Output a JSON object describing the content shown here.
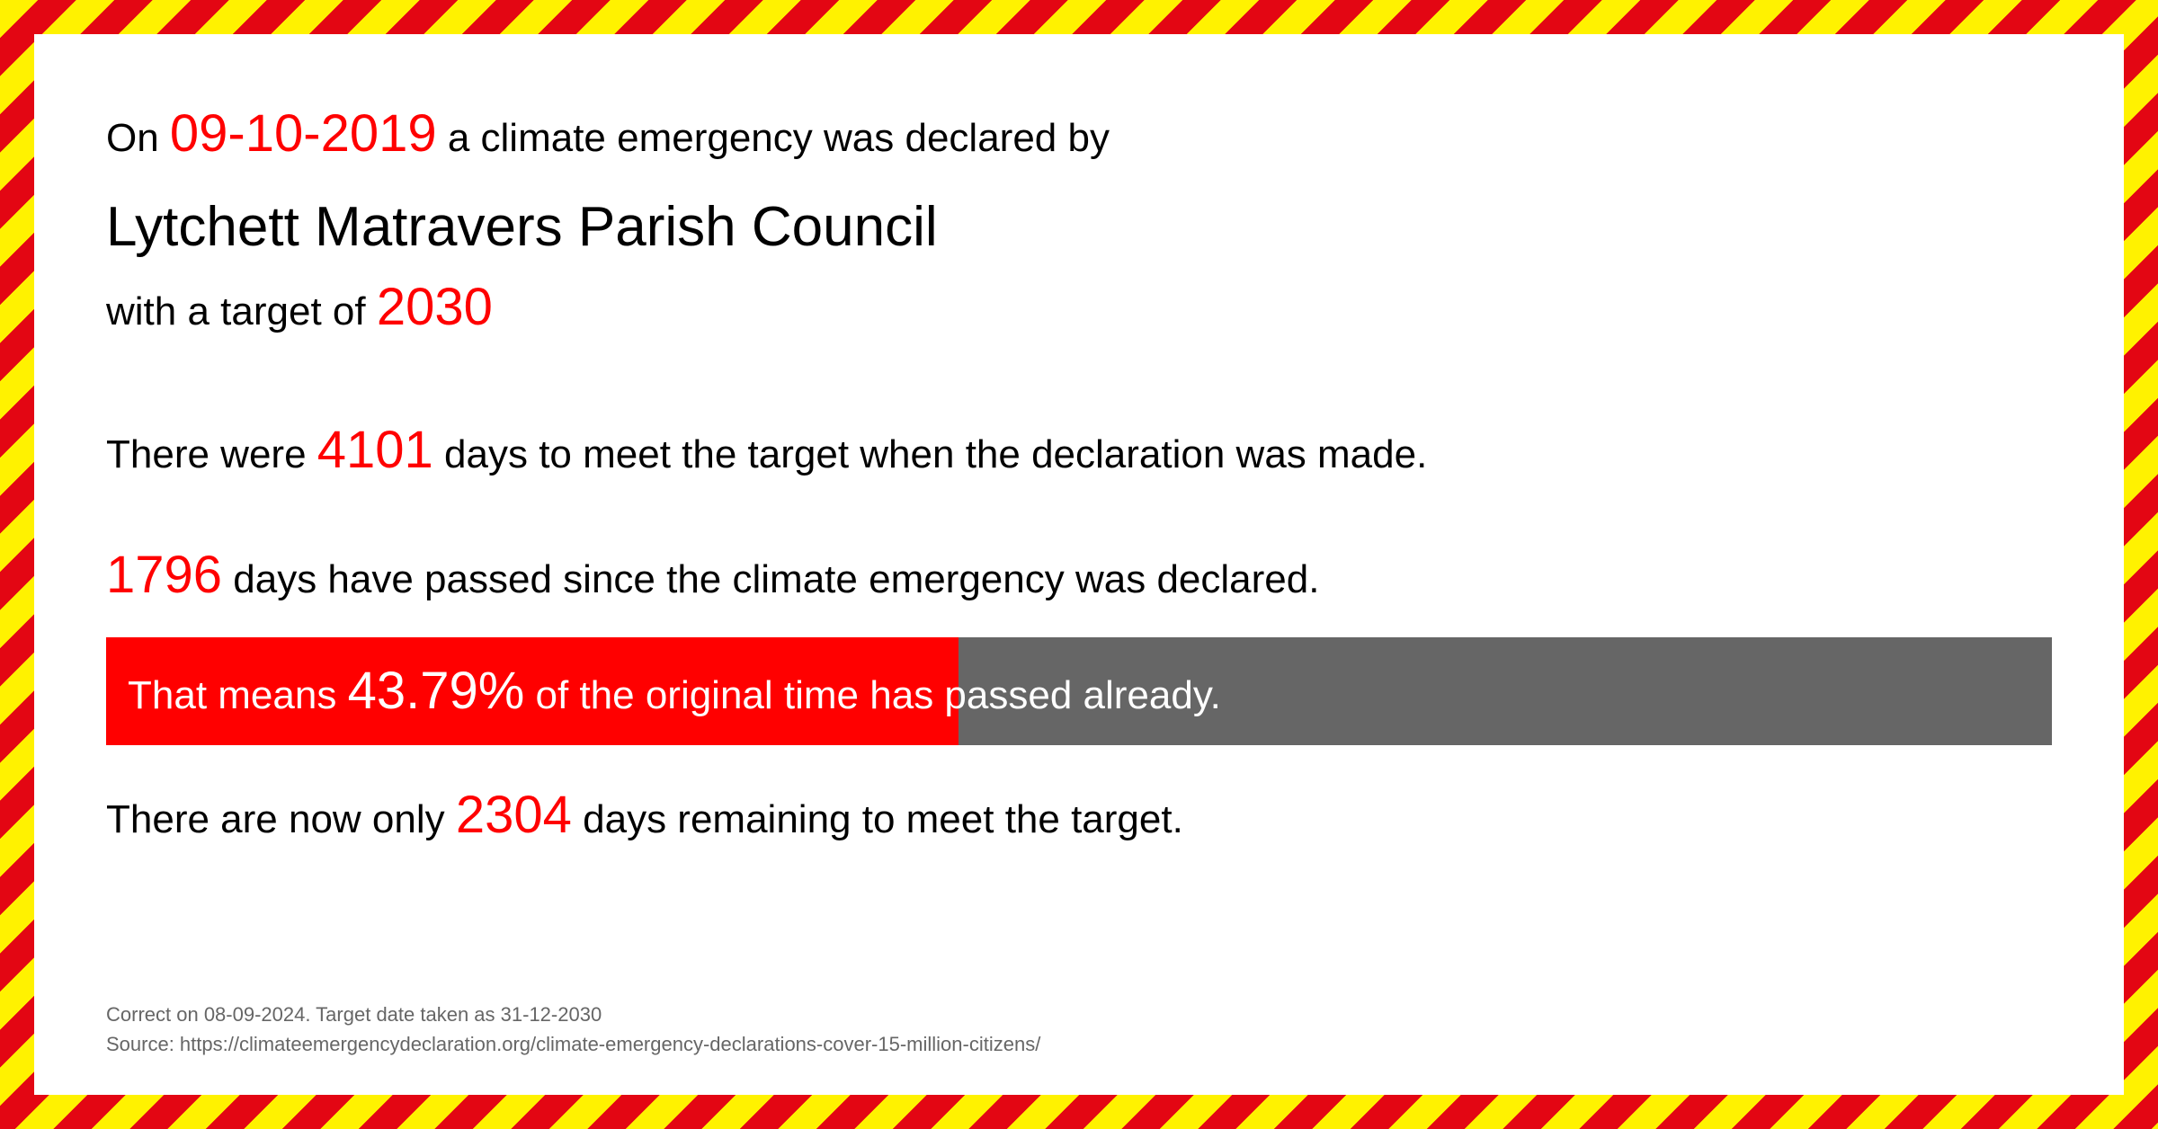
{
  "declaration": {
    "prefix": "On ",
    "date": "09-10-2019",
    "suffix": " a climate emergency was declared by"
  },
  "council_name": "Lytchett Matravers Parish Council",
  "target": {
    "prefix": "with a target of  ",
    "year": "2030"
  },
  "total_days": {
    "prefix": "There were ",
    "value": "4101",
    "suffix": "  days to meet the target when the declaration was made."
  },
  "days_passed": {
    "value": "1796",
    "suffix": " days have passed since the climate emergency was declared."
  },
  "progress": {
    "prefix": "That means  ",
    "percentage": "43.79%",
    "percentage_value": 43.79,
    "suffix": " of the original time has passed already.",
    "bar_fill_color": "#ff0000",
    "bar_bg_color": "#666666"
  },
  "days_remaining": {
    "prefix": "There are now only  ",
    "value": "2304",
    "suffix": " days remaining to meet the target."
  },
  "footer": {
    "line1": "Correct on 08-09-2024. Target date taken as 31-12-2030",
    "line2": "Source: https://climateemergencydeclaration.org/climate-emergency-declarations-cover-15-million-citizens/"
  },
  "colors": {
    "red": "#ff0000",
    "black": "#000000",
    "grey": "#666666",
    "yellow": "#fff200",
    "border_red": "#e30613",
    "white": "#ffffff"
  }
}
